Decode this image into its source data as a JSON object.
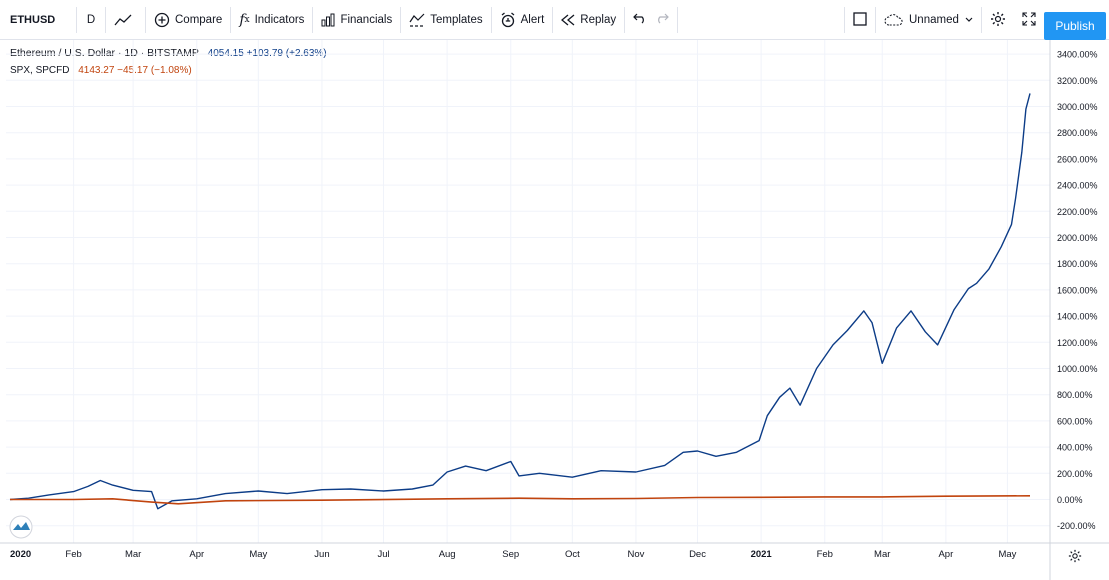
{
  "toolbar": {
    "symbol": "ETHUSD",
    "interval": "D",
    "compare": "Compare",
    "indicators": "Indicators",
    "financials": "Financials",
    "templates": "Templates",
    "alert": "Alert",
    "replay": "Replay",
    "layout_name": "Unnamed",
    "publish": "Publish"
  },
  "legend": {
    "main_title": "Ethereum / U.S. Dollar · 1D · BITSTAMP",
    "main_values": "4054.15 +103.79 (+2.63%)",
    "compare_title": "SPX, SPCFD",
    "compare_values": "4143.27 −45.17 (−1.08%)"
  },
  "colors": {
    "eth": "#0c3c87",
    "spx": "#c1440e",
    "grid": "#f0f3fa",
    "accent": "#2196f3"
  },
  "chart_data": {
    "type": "line",
    "title": "Ethereum / U.S. Dollar · 1D · BITSTAMP",
    "xlabel": "",
    "ylabel": "",
    "x_ticks": [
      "2020",
      "Feb",
      "Mar",
      "Apr",
      "May",
      "Jun",
      "Jul",
      "Aug",
      "Sep",
      "Oct",
      "Nov",
      "Dec",
      "2021",
      "Feb",
      "Mar",
      "Apr",
      "May"
    ],
    "y_ticks": [
      "3400.00%",
      "3200.00%",
      "3000.00%",
      "2800.00%",
      "2600.00%",
      "2400.00%",
      "2200.00%",
      "2000.00%",
      "1800.00%",
      "1600.00%",
      "1400.00%",
      "1200.00%",
      "1000.00%",
      "800.00%",
      "600.00%",
      "400.00%",
      "200.00%",
      "0.00%",
      "-200.00%"
    ],
    "ylim": [
      -300,
      3480
    ],
    "grid": true,
    "series": [
      {
        "name": "Ethereum / U.S. Dollar · 1D · BITSTAMP",
        "color": "#0c3c87",
        "x": [
          "2020-01-01",
          "2020-01-10",
          "2020-01-20",
          "2020-02-01",
          "2020-02-08",
          "2020-02-14",
          "2020-02-20",
          "2020-03-01",
          "2020-03-10",
          "2020-03-13",
          "2020-03-20",
          "2020-04-01",
          "2020-04-15",
          "2020-05-01",
          "2020-05-15",
          "2020-06-01",
          "2020-06-15",
          "2020-07-01",
          "2020-07-15",
          "2020-07-25",
          "2020-08-01",
          "2020-08-10",
          "2020-08-20",
          "2020-09-01",
          "2020-09-05",
          "2020-09-15",
          "2020-10-01",
          "2020-10-15",
          "2020-11-01",
          "2020-11-15",
          "2020-11-24",
          "2020-12-01",
          "2020-12-10",
          "2020-12-20",
          "2020-12-31",
          "2021-01-04",
          "2021-01-10",
          "2021-01-15",
          "2021-01-20",
          "2021-01-28",
          "2021-02-05",
          "2021-02-12",
          "2021-02-20",
          "2021-02-24",
          "2021-03-01",
          "2021-03-08",
          "2021-03-15",
          "2021-03-22",
          "2021-03-28",
          "2021-04-05",
          "2021-04-12",
          "2021-04-16",
          "2021-04-22",
          "2021-04-28",
          "2021-05-03",
          "2021-05-05",
          "2021-05-08",
          "2021-05-10",
          "2021-05-12"
        ],
        "values": [
          0,
          10,
          35,
          60,
          100,
          145,
          110,
          70,
          60,
          -70,
          -10,
          5,
          45,
          65,
          45,
          75,
          80,
          65,
          80,
          110,
          210,
          255,
          220,
          290,
          180,
          200,
          170,
          220,
          210,
          260,
          360,
          370,
          330,
          360,
          450,
          640,
          780,
          850,
          720,
          1000,
          1180,
          1290,
          1440,
          1350,
          1040,
          1310,
          1440,
          1280,
          1180,
          1450,
          1610,
          1650,
          1760,
          1930,
          2100,
          2300,
          2650,
          2980,
          3100
        ]
      },
      {
        "name": "SPX, SPCFD",
        "color": "#c1440e",
        "x": [
          "2020-01-01",
          "2020-02-01",
          "2020-02-20",
          "2020-03-10",
          "2020-03-23",
          "2020-04-15",
          "2020-06-01",
          "2020-08-01",
          "2020-09-05",
          "2020-10-01",
          "2020-11-01",
          "2020-12-01",
          "2021-01-01",
          "2021-02-01",
          "2021-03-01",
          "2021-04-01",
          "2021-05-12"
        ],
        "values": [
          0,
          0,
          5,
          -20,
          -33,
          -10,
          -5,
          5,
          10,
          5,
          8,
          15,
          17,
          20,
          20,
          25,
          28
        ]
      }
    ]
  }
}
